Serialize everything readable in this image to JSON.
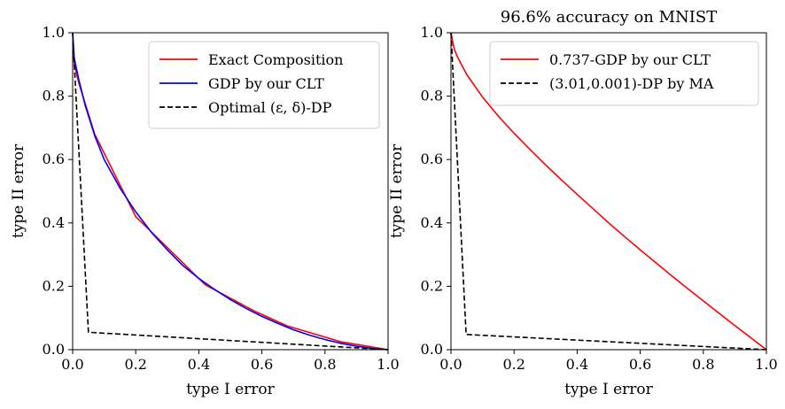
{
  "chart_data": [
    {
      "type": "line",
      "title": "",
      "xlabel": "type I error",
      "ylabel": "type II error",
      "xlim": [
        0,
        1
      ],
      "ylim": [
        0,
        1
      ],
      "xticks": [
        "0.0",
        "0.2",
        "0.4",
        "0.6",
        "0.8",
        "1.0"
      ],
      "yticks": [
        "0.0",
        "0.2",
        "0.4",
        "0.6",
        "0.8",
        "1.0"
      ],
      "grid": false,
      "legend_position": "top-right",
      "series": [
        {
          "name": "Exact Composition",
          "color": "#ff0000",
          "style": "solid",
          "points": [
            [
              0.0,
              1.0
            ],
            [
              0.005,
              0.9
            ],
            [
              0.02,
              0.84
            ],
            [
              0.07,
              0.68
            ],
            [
              0.2,
              0.42
            ],
            [
              0.42,
              0.205
            ],
            [
              0.58,
              0.12
            ],
            [
              0.68,
              0.075
            ],
            [
              0.85,
              0.025
            ],
            [
              1.0,
              0.0
            ]
          ]
        },
        {
          "name": "GDP by our CLT",
          "color": "#0000ff",
          "style": "solid",
          "points": [
            [
              0.0,
              1.0
            ],
            [
              0.005,
              0.92
            ],
            [
              0.02,
              0.85
            ],
            [
              0.04,
              0.77
            ],
            [
              0.07,
              0.675
            ],
            [
              0.1,
              0.6
            ],
            [
              0.15,
              0.51
            ],
            [
              0.2,
              0.435
            ],
            [
              0.25,
              0.37
            ],
            [
              0.3,
              0.315
            ],
            [
              0.35,
              0.265
            ],
            [
              0.4,
              0.225
            ],
            [
              0.45,
              0.19
            ],
            [
              0.5,
              0.158
            ],
            [
              0.55,
              0.13
            ],
            [
              0.6,
              0.105
            ],
            [
              0.65,
              0.083
            ],
            [
              0.7,
              0.063
            ],
            [
              0.75,
              0.046
            ],
            [
              0.8,
              0.032
            ],
            [
              0.85,
              0.02
            ],
            [
              0.9,
              0.011
            ],
            [
              0.95,
              0.004
            ],
            [
              1.0,
              0.0
            ]
          ]
        },
        {
          "name": "Optimal (ε, δ)-DP",
          "color": "#000000",
          "style": "dashed",
          "points": [
            [
              0.0,
              1.0
            ],
            [
              0.05,
              0.055
            ],
            [
              1.0,
              0.0
            ]
          ]
        }
      ]
    },
    {
      "type": "line",
      "title": "96.6% accuracy on MNIST",
      "xlabel": "type I error",
      "ylabel": "type II error",
      "xlim": [
        0,
        1
      ],
      "ylim": [
        0,
        1
      ],
      "xticks": [
        "0.0",
        "0.2",
        "0.4",
        "0.6",
        "0.8",
        "1.0"
      ],
      "yticks": [
        "0.0",
        "0.2",
        "0.4",
        "0.6",
        "0.8",
        "1.0"
      ],
      "grid": false,
      "legend_position": "top-right",
      "series": [
        {
          "name": "0.737-GDP by our CLT",
          "color": "#ff0000",
          "style": "solid",
          "points": [
            [
              0.0,
              1.0
            ],
            [
              0.01,
              0.95
            ],
            [
              0.02,
              0.925
            ],
            [
              0.05,
              0.868
            ],
            [
              0.1,
              0.797
            ],
            [
              0.15,
              0.737
            ],
            [
              0.2,
              0.683
            ],
            [
              0.25,
              0.632
            ],
            [
              0.3,
              0.583
            ],
            [
              0.35,
              0.536
            ],
            [
              0.4,
              0.49
            ],
            [
              0.45,
              0.445
            ],
            [
              0.5,
              0.4
            ],
            [
              0.55,
              0.357
            ],
            [
              0.6,
              0.315
            ],
            [
              0.65,
              0.274
            ],
            [
              0.7,
              0.233
            ],
            [
              0.75,
              0.193
            ],
            [
              0.8,
              0.154
            ],
            [
              0.85,
              0.115
            ],
            [
              0.9,
              0.076
            ],
            [
              0.95,
              0.038
            ],
            [
              0.98,
              0.015
            ],
            [
              1.0,
              0.0
            ]
          ]
        },
        {
          "name": "(3.01,0.001)-DP by MA",
          "color": "#000000",
          "style": "dashed",
          "points": [
            [
              0.0,
              1.0
            ],
            [
              0.048,
              0.048
            ],
            [
              1.0,
              0.0
            ]
          ]
        }
      ]
    }
  ]
}
